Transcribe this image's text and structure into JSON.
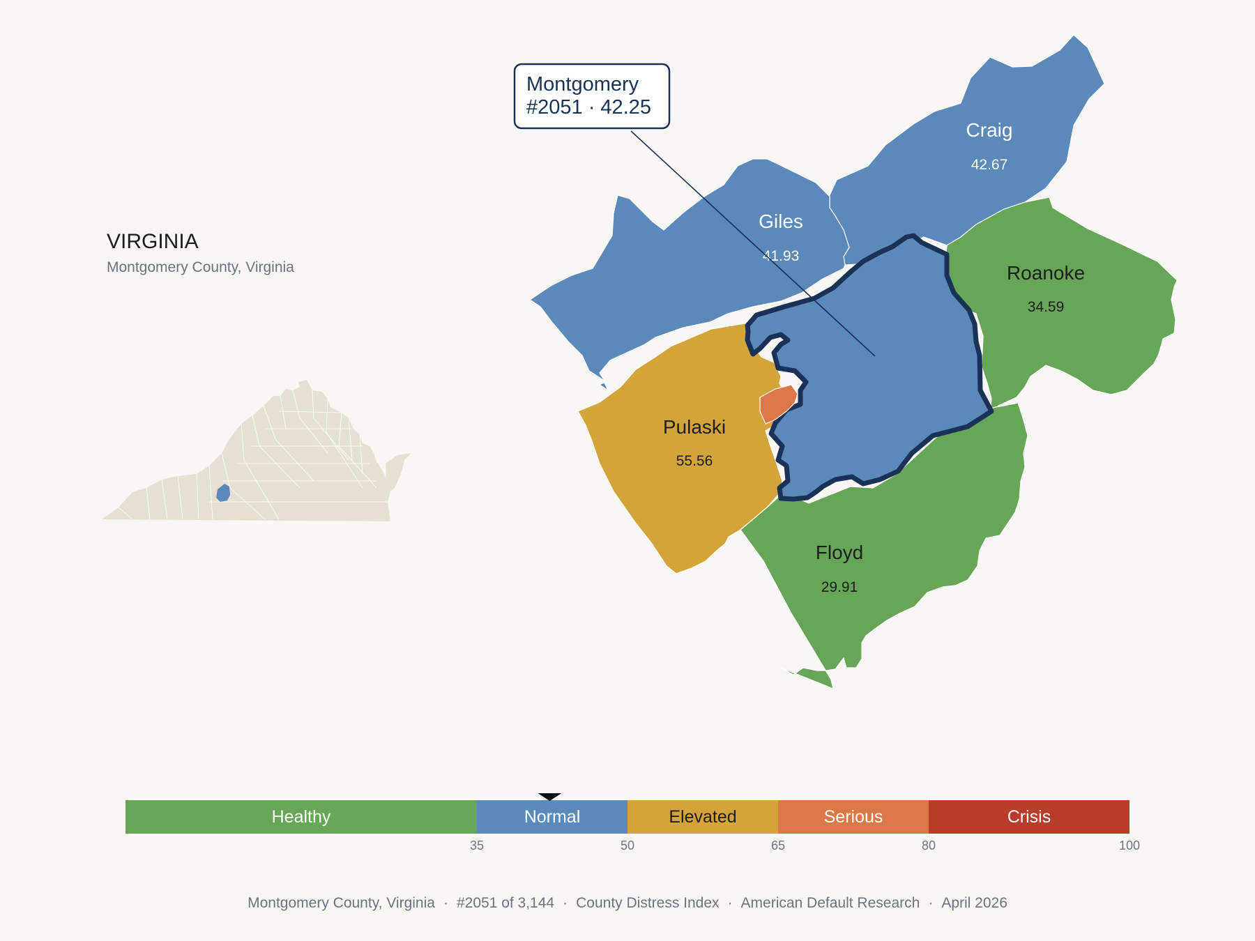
{
  "state": {
    "title": "VIRGINIA",
    "subtitle": "Montgomery County, Virginia",
    "inset_colors": {
      "base": "#e6e0d3",
      "highlight": "#5b89b9",
      "borders": "#ffffff"
    }
  },
  "callout": {
    "line1": "Montgomery",
    "line2": "#2051 · 42.25"
  },
  "counties": [
    {
      "key": "craig",
      "name": "Craig",
      "score": "42.67",
      "category": "Normal",
      "color": "#5b89b9",
      "text_color": "#ffffff"
    },
    {
      "key": "giles",
      "name": "Giles",
      "score": "41.93",
      "category": "Normal",
      "color": "#5b89b9",
      "text_color": "#ffffff"
    },
    {
      "key": "roanoke",
      "name": "Roanoke",
      "score": "34.59",
      "category": "Healthy",
      "color": "#67a657",
      "text_color": "#1d1d1d"
    },
    {
      "key": "pulaski",
      "name": "Pulaski",
      "score": "55.56",
      "category": "Elevated",
      "color": "#d3a43a",
      "text_color": "#1d1d1d"
    },
    {
      "key": "floyd",
      "name": "Floyd",
      "score": "29.91",
      "category": "Healthy",
      "color": "#67a657",
      "text_color": "#1d1d1d"
    },
    {
      "key": "montgomery",
      "name": "Montgomery",
      "score": "42.25",
      "category": "Normal",
      "color": "#5b89b9",
      "text_color": "#ffffff"
    },
    {
      "key": "radford",
      "name": "",
      "score": "",
      "category": "Serious",
      "color": "#dc7847",
      "text_color": "#ffffff"
    }
  ],
  "scale": {
    "min": 0,
    "max": 100,
    "marker_value": 42.25,
    "bins": [
      {
        "label": "Healthy",
        "from": 0,
        "to": 35,
        "color": "#67a657",
        "text_color": "#ffffff"
      },
      {
        "label": "Normal",
        "from": 35,
        "to": 50,
        "color": "#5b89b9",
        "text_color": "#ffffff"
      },
      {
        "label": "Elevated",
        "from": 50,
        "to": 65,
        "color": "#d3a43a",
        "text_color": "#1d1d1d"
      },
      {
        "label": "Serious",
        "from": 65,
        "to": 80,
        "color": "#dc7847",
        "text_color": "#ffffff"
      },
      {
        "label": "Crisis",
        "from": 80,
        "to": 100,
        "color": "#b93c2b",
        "text_color": "#ffffff"
      }
    ],
    "ticks": [
      "35",
      "50",
      "65",
      "80",
      "100"
    ]
  },
  "footer": {
    "county": "Montgomery County, Virginia",
    "rank": "#2051 of 3,144",
    "index": "County Distress Index",
    "source": "American Default Research",
    "date": "April 2026"
  }
}
